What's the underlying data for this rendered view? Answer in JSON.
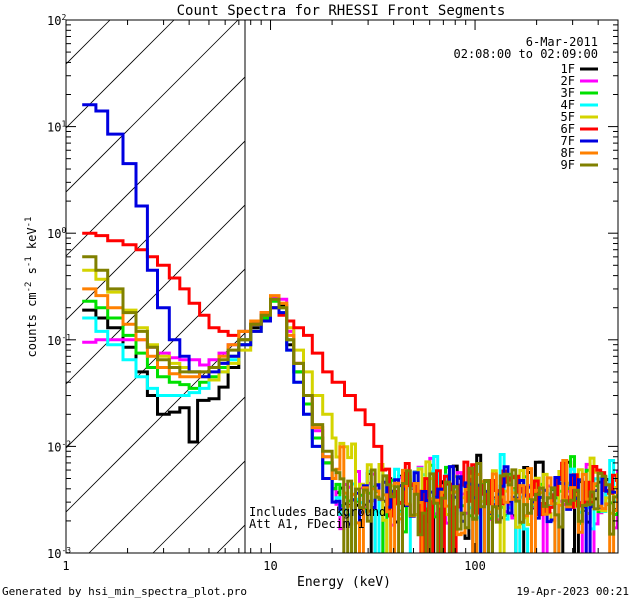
{
  "chart_data": {
    "type": "line",
    "title": "Count Spectra for RHESSI Front Segments",
    "xlabel": "Energy (keV)",
    "ylabel_main": "counts cm",
    "ylabel_exp1": "-2",
    "ylabel_mid": " s",
    "ylabel_exp2": "-1",
    "ylabel_end": " keV",
    "ylabel_exp3": "-1",
    "xscale": "log",
    "yscale": "log",
    "xlim": [
      1,
      500
    ],
    "ylim": [
      0.001,
      100
    ],
    "x_ticks": [
      {
        "value": 1,
        "label": "1"
      },
      {
        "value": 10,
        "label": "10"
      },
      {
        "value": 100,
        "label": "100"
      }
    ],
    "y_ticks": [
      {
        "value": 0.001,
        "base": "10",
        "exp": "-3"
      },
      {
        "value": 0.01,
        "base": "10",
        "exp": "-2"
      },
      {
        "value": 0.1,
        "base": "10",
        "exp": "-1"
      },
      {
        "value": 1,
        "base": "10",
        "exp": "0"
      },
      {
        "value": 10,
        "base": "10",
        "exp": "1"
      },
      {
        "value": 100,
        "base": "10",
        "exp": "2"
      }
    ],
    "excluded_region_keV": [
      1,
      6
    ],
    "date": "6-Mar-2011",
    "time_range": "02:08:00 to 02:09:00",
    "annotation_line1": "Includes Background",
    "annotation_line2": "Att A1, FDecim 1",
    "footer_left": "Generated by hsi_min_spectra_plot.pro",
    "footer_right": "19-Apr-2023 00:21",
    "series": [
      {
        "name": "1F",
        "color": "#000000",
        "low": [
          [
            1.2,
            0.19
          ],
          [
            1.4,
            0.16
          ],
          [
            1.6,
            0.13
          ],
          [
            1.9,
            0.085
          ],
          [
            2.2,
            0.05
          ],
          [
            2.5,
            0.03
          ],
          [
            2.8,
            0.02
          ],
          [
            3.2,
            0.021
          ],
          [
            3.6,
            0.023
          ],
          [
            4.0,
            0.011
          ],
          [
            4.4,
            0.027
          ],
          [
            5.0,
            0.028
          ],
          [
            5.6,
            0.036
          ],
          [
            6.2,
            0.055
          ],
          [
            7.0,
            0.09
          ],
          [
            8.0,
            0.13
          ],
          [
            9.0,
            0.16
          ],
          [
            10.0,
            0.24
          ],
          [
            11.0,
            0.21
          ],
          [
            12.0,
            0.09
          ],
          [
            13.0,
            0.05
          ],
          [
            14.5,
            0.025
          ],
          [
            16.0,
            0.012
          ],
          [
            18.0,
            0.007
          ],
          [
            20.0,
            0.004
          ]
        ]
      },
      {
        "name": "2F",
        "color": "#ff00ff",
        "low": [
          [
            1.2,
            0.095
          ],
          [
            1.4,
            0.1
          ],
          [
            1.6,
            0.1
          ],
          [
            1.9,
            0.1
          ],
          [
            2.2,
            0.1
          ],
          [
            2.5,
            0.085
          ],
          [
            2.8,
            0.075
          ],
          [
            3.2,
            0.068
          ],
          [
            3.6,
            0.065
          ],
          [
            4.0,
            0.065
          ],
          [
            4.5,
            0.058
          ],
          [
            5.0,
            0.065
          ],
          [
            5.6,
            0.075
          ],
          [
            6.2,
            0.09
          ],
          [
            7.0,
            0.1
          ],
          [
            8.0,
            0.14
          ],
          [
            9.0,
            0.17
          ],
          [
            10.0,
            0.25
          ],
          [
            11.0,
            0.24
          ],
          [
            12.0,
            0.12
          ],
          [
            13.0,
            0.06
          ],
          [
            14.5,
            0.03
          ],
          [
            16.0,
            0.014
          ],
          [
            18.0,
            0.008
          ],
          [
            20.0,
            0.004
          ]
        ]
      },
      {
        "name": "3F",
        "color": "#00e000",
        "low": [
          [
            1.2,
            0.23
          ],
          [
            1.4,
            0.2
          ],
          [
            1.6,
            0.16
          ],
          [
            1.9,
            0.11
          ],
          [
            2.2,
            0.075
          ],
          [
            2.5,
            0.055
          ],
          [
            2.8,
            0.045
          ],
          [
            3.2,
            0.04
          ],
          [
            3.6,
            0.038
          ],
          [
            4.0,
            0.035
          ],
          [
            4.5,
            0.04
          ],
          [
            5.0,
            0.045
          ],
          [
            5.6,
            0.055
          ],
          [
            6.2,
            0.07
          ],
          [
            7.0,
            0.1
          ],
          [
            8.0,
            0.14
          ],
          [
            9.0,
            0.16
          ],
          [
            10.0,
            0.23
          ],
          [
            11.0,
            0.2
          ],
          [
            12.0,
            0.1
          ],
          [
            13.0,
            0.05
          ],
          [
            14.5,
            0.025
          ],
          [
            16.0,
            0.012
          ],
          [
            18.0,
            0.007
          ],
          [
            20.0,
            0.004
          ]
        ]
      },
      {
        "name": "4F",
        "color": "#00ffff",
        "low": [
          [
            1.2,
            0.16
          ],
          [
            1.4,
            0.12
          ],
          [
            1.6,
            0.09
          ],
          [
            1.9,
            0.065
          ],
          [
            2.2,
            0.045
          ],
          [
            2.5,
            0.035
          ],
          [
            2.8,
            0.03
          ],
          [
            3.2,
            0.03
          ],
          [
            3.6,
            0.03
          ],
          [
            4.0,
            0.032
          ],
          [
            4.5,
            0.035
          ],
          [
            5.0,
            0.042
          ],
          [
            5.6,
            0.05
          ],
          [
            6.2,
            0.065
          ],
          [
            7.0,
            0.09
          ],
          [
            8.0,
            0.12
          ],
          [
            9.0,
            0.15
          ],
          [
            10.0,
            0.2
          ],
          [
            11.0,
            0.18
          ],
          [
            12.0,
            0.08
          ],
          [
            13.0,
            0.04
          ],
          [
            14.5,
            0.02
          ],
          [
            16.0,
            0.01
          ],
          [
            18.0,
            0.005
          ],
          [
            20.0,
            0.003
          ]
        ]
      },
      {
        "name": "5F",
        "color": "#d4d400",
        "low": [
          [
            1.2,
            0.45
          ],
          [
            1.4,
            0.37
          ],
          [
            1.6,
            0.28
          ],
          [
            1.9,
            0.19
          ],
          [
            2.2,
            0.13
          ],
          [
            2.5,
            0.09
          ],
          [
            2.8,
            0.07
          ],
          [
            3.2,
            0.06
          ],
          [
            3.6,
            0.055
          ],
          [
            4.0,
            0.05
          ],
          [
            4.5,
            0.045
          ],
          [
            5.0,
            0.042
          ],
          [
            5.6,
            0.05
          ],
          [
            6.2,
            0.06
          ],
          [
            7.0,
            0.08
          ],
          [
            8.0,
            0.12
          ],
          [
            9.0,
            0.15
          ],
          [
            10.0,
            0.2
          ],
          [
            11.0,
            0.22
          ],
          [
            12.0,
            0.13
          ],
          [
            13.0,
            0.08
          ],
          [
            14.5,
            0.05
          ],
          [
            16.0,
            0.03
          ],
          [
            18.0,
            0.02
          ],
          [
            20.0,
            0.012
          ]
        ]
      },
      {
        "name": "6F",
        "color": "#ff0000",
        "low": [
          [
            1.2,
            1.0
          ],
          [
            1.4,
            0.95
          ],
          [
            1.6,
            0.85
          ],
          [
            1.9,
            0.78
          ],
          [
            2.2,
            0.7
          ],
          [
            2.5,
            0.6
          ],
          [
            2.8,
            0.5
          ],
          [
            3.2,
            0.38
          ],
          [
            3.6,
            0.3
          ],
          [
            4.0,
            0.22
          ],
          [
            4.5,
            0.17
          ],
          [
            5.0,
            0.13
          ],
          [
            5.6,
            0.12
          ],
          [
            6.2,
            0.11
          ],
          [
            7.0,
            0.12
          ],
          [
            8.0,
            0.14
          ],
          [
            9.0,
            0.18
          ],
          [
            10.0,
            0.2
          ],
          [
            11.0,
            0.17
          ],
          [
            12.0,
            0.15
          ],
          [
            13.0,
            0.13
          ],
          [
            14.5,
            0.11
          ],
          [
            16.0,
            0.075
          ],
          [
            18.0,
            0.05
          ],
          [
            20.0,
            0.04
          ],
          [
            23.0,
            0.03
          ],
          [
            26.0,
            0.022
          ],
          [
            29.0,
            0.016
          ],
          [
            32.0,
            0.01
          ],
          [
            35.0,
            0.006
          ]
        ]
      },
      {
        "name": "7F",
        "color": "#0000e0",
        "low": [
          [
            1.2,
            16
          ],
          [
            1.4,
            14
          ],
          [
            1.6,
            8.5
          ],
          [
            1.9,
            4.5
          ],
          [
            2.2,
            1.8
          ],
          [
            2.5,
            0.45
          ],
          [
            2.8,
            0.2
          ],
          [
            3.2,
            0.1
          ],
          [
            3.6,
            0.07
          ],
          [
            4.0,
            0.05
          ],
          [
            4.5,
            0.045
          ],
          [
            5.0,
            0.05
          ],
          [
            5.6,
            0.06
          ],
          [
            6.2,
            0.07
          ],
          [
            7.0,
            0.09
          ],
          [
            8.0,
            0.12
          ],
          [
            9.0,
            0.15
          ],
          [
            10.0,
            0.2
          ],
          [
            11.0,
            0.18
          ],
          [
            12.0,
            0.08
          ],
          [
            13.0,
            0.04
          ],
          [
            14.5,
            0.02
          ],
          [
            16.0,
            0.01
          ],
          [
            18.0,
            0.005
          ],
          [
            20.0,
            0.003
          ]
        ]
      },
      {
        "name": "8F",
        "color": "#ff8000",
        "low": [
          [
            1.2,
            0.3
          ],
          [
            1.4,
            0.26
          ],
          [
            1.6,
            0.2
          ],
          [
            1.9,
            0.14
          ],
          [
            2.2,
            0.1
          ],
          [
            2.5,
            0.07
          ],
          [
            2.8,
            0.055
          ],
          [
            3.2,
            0.048
          ],
          [
            3.6,
            0.045
          ],
          [
            4.0,
            0.045
          ],
          [
            4.5,
            0.05
          ],
          [
            5.0,
            0.055
          ],
          [
            5.6,
            0.07
          ],
          [
            6.2,
            0.09
          ],
          [
            7.0,
            0.12
          ],
          [
            8.0,
            0.15
          ],
          [
            9.0,
            0.18
          ],
          [
            10.0,
            0.26
          ],
          [
            11.0,
            0.22
          ],
          [
            12.0,
            0.11
          ],
          [
            13.0,
            0.06
          ],
          [
            14.5,
            0.03
          ],
          [
            16.0,
            0.015
          ],
          [
            18.0,
            0.008
          ],
          [
            20.0,
            0.005
          ]
        ]
      },
      {
        "name": "9F",
        "color": "#808000",
        "low": [
          [
            1.2,
            0.6
          ],
          [
            1.4,
            0.45
          ],
          [
            1.6,
            0.3
          ],
          [
            1.9,
            0.18
          ],
          [
            2.2,
            0.12
          ],
          [
            2.5,
            0.085
          ],
          [
            2.8,
            0.065
          ],
          [
            3.2,
            0.055
          ],
          [
            3.6,
            0.05
          ],
          [
            4.0,
            0.05
          ],
          [
            4.5,
            0.05
          ],
          [
            5.0,
            0.055
          ],
          [
            5.6,
            0.065
          ],
          [
            6.2,
            0.08
          ],
          [
            7.0,
            0.1
          ],
          [
            8.0,
            0.14
          ],
          [
            9.0,
            0.17
          ],
          [
            10.0,
            0.24
          ],
          [
            11.0,
            0.2
          ],
          [
            12.0,
            0.1
          ],
          [
            13.0,
            0.06
          ],
          [
            14.5,
            0.03
          ],
          [
            16.0,
            0.016
          ],
          [
            18.0,
            0.009
          ],
          [
            20.0,
            0.006
          ]
        ]
      }
    ]
  }
}
